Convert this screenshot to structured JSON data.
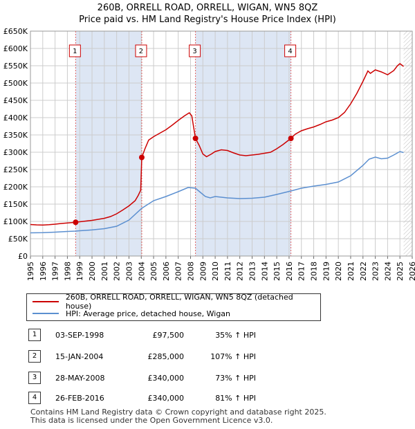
{
  "chart_data": {
    "type": "line",
    "title": "260B, ORRELL ROAD, ORRELL, WIGAN, WN5 8QZ",
    "subtitle": "Price paid vs. HM Land Registry's House Price Index (HPI)",
    "xlim": [
      1995,
      2026
    ],
    "ylim": [
      0,
      650000
    ],
    "x_ticks": [
      "1995",
      "1996",
      "1997",
      "1998",
      "1999",
      "2000",
      "2001",
      "2002",
      "2003",
      "2004",
      "2005",
      "2006",
      "2007",
      "2008",
      "2009",
      "2010",
      "2011",
      "2012",
      "2013",
      "2014",
      "2015",
      "2016",
      "2017",
      "2018",
      "2019",
      "2020",
      "2021",
      "2022",
      "2023",
      "2024",
      "2025",
      "2026"
    ],
    "y_ticks": [
      {
        "value": 0,
        "label": "£0"
      },
      {
        "value": 50000,
        "label": "£50K"
      },
      {
        "value": 100000,
        "label": "£100K"
      },
      {
        "value": 150000,
        "label": "£150K"
      },
      {
        "value": 200000,
        "label": "£200K"
      },
      {
        "value": 250000,
        "label": "£250K"
      },
      {
        "value": 300000,
        "label": "£300K"
      },
      {
        "value": 350000,
        "label": "£350K"
      },
      {
        "value": 400000,
        "label": "£400K"
      },
      {
        "value": 450000,
        "label": "£450K"
      },
      {
        "value": 500000,
        "label": "£500K"
      },
      {
        "value": 550000,
        "label": "£550K"
      },
      {
        "value": 600000,
        "label": "£600K"
      },
      {
        "value": 650000,
        "label": "£650K"
      }
    ],
    "hatch_from_year": 2025.3,
    "sale_bands": [
      [
        1998.67,
        2004.04
      ],
      [
        2008.4,
        2016.15
      ]
    ],
    "series": [
      {
        "name": "260B, ORRELL ROAD, ORRELL, WIGAN, WN5 8QZ (detached house)",
        "color": "#cc0000",
        "points": [
          [
            1995.0,
            91000
          ],
          [
            1995.5,
            90000
          ],
          [
            1996.0,
            89500
          ],
          [
            1996.5,
            90500
          ],
          [
            1997.0,
            92000
          ],
          [
            1997.5,
            94000
          ],
          [
            1998.0,
            95500
          ],
          [
            1998.5,
            97000
          ],
          [
            1998.67,
            97500
          ],
          [
            1999.0,
            99000
          ],
          [
            1999.5,
            101000
          ],
          [
            2000.0,
            103000
          ],
          [
            2000.5,
            106000
          ],
          [
            2001.0,
            109000
          ],
          [
            2001.5,
            114000
          ],
          [
            2002.0,
            122000
          ],
          [
            2002.5,
            133000
          ],
          [
            2003.0,
            145000
          ],
          [
            2003.5,
            160000
          ],
          [
            2003.75,
            175000
          ],
          [
            2003.95,
            190000
          ],
          [
            2004.04,
            285000
          ],
          [
            2004.3,
            310000
          ],
          [
            2004.6,
            335000
          ],
          [
            2005.0,
            345000
          ],
          [
            2005.5,
            355000
          ],
          [
            2006.0,
            365000
          ],
          [
            2006.5,
            378000
          ],
          [
            2007.0,
            392000
          ],
          [
            2007.5,
            405000
          ],
          [
            2007.9,
            414000
          ],
          [
            2008.1,
            405000
          ],
          [
            2008.4,
            340000
          ],
          [
            2008.7,
            320000
          ],
          [
            2009.0,
            295000
          ],
          [
            2009.3,
            287000
          ],
          [
            2009.7,
            295000
          ],
          [
            2010.0,
            302000
          ],
          [
            2010.5,
            307000
          ],
          [
            2011.0,
            305000
          ],
          [
            2011.5,
            298000
          ],
          [
            2012.0,
            292000
          ],
          [
            2012.5,
            290000
          ],
          [
            2013.0,
            292000
          ],
          [
            2013.5,
            294000
          ],
          [
            2014.0,
            297000
          ],
          [
            2014.5,
            300000
          ],
          [
            2015.0,
            310000
          ],
          [
            2015.5,
            322000
          ],
          [
            2016.15,
            340000
          ],
          [
            2016.5,
            352000
          ],
          [
            2017.0,
            362000
          ],
          [
            2017.5,
            368000
          ],
          [
            2018.0,
            373000
          ],
          [
            2018.5,
            380000
          ],
          [
            2019.0,
            388000
          ],
          [
            2019.5,
            393000
          ],
          [
            2020.0,
            400000
          ],
          [
            2020.5,
            415000
          ],
          [
            2021.0,
            440000
          ],
          [
            2021.5,
            470000
          ],
          [
            2022.0,
            505000
          ],
          [
            2022.4,
            535000
          ],
          [
            2022.6,
            528000
          ],
          [
            2023.0,
            538000
          ],
          [
            2023.5,
            532000
          ],
          [
            2024.0,
            524000
          ],
          [
            2024.5,
            536000
          ],
          [
            2024.8,
            550000
          ],
          [
            2025.0,
            556000
          ],
          [
            2025.3,
            548000
          ]
        ]
      },
      {
        "name": "HPI: Average price, detached house, Wigan",
        "color": "#5b8fd0",
        "points": [
          [
            1995.0,
            67000
          ],
          [
            1996.0,
            67500
          ],
          [
            1997.0,
            69000
          ],
          [
            1998.0,
            71000
          ],
          [
            1998.67,
            72000
          ],
          [
            1999.0,
            73000
          ],
          [
            2000.0,
            75500
          ],
          [
            2001.0,
            79000
          ],
          [
            2002.0,
            86000
          ],
          [
            2003.0,
            104000
          ],
          [
            2004.04,
            138000
          ],
          [
            2005.0,
            160000
          ],
          [
            2006.0,
            172000
          ],
          [
            2007.0,
            186000
          ],
          [
            2007.8,
            198000
          ],
          [
            2008.4,
            196000
          ],
          [
            2008.8,
            184000
          ],
          [
            2009.2,
            172000
          ],
          [
            2009.6,
            168000
          ],
          [
            2010.0,
            172000
          ],
          [
            2011.0,
            168000
          ],
          [
            2012.0,
            166000
          ],
          [
            2013.0,
            167000
          ],
          [
            2014.0,
            170000
          ],
          [
            2015.0,
            178000
          ],
          [
            2016.15,
            188000
          ],
          [
            2017.0,
            196000
          ],
          [
            2018.0,
            202000
          ],
          [
            2019.0,
            207000
          ],
          [
            2020.0,
            214000
          ],
          [
            2021.0,
            232000
          ],
          [
            2022.0,
            262000
          ],
          [
            2022.5,
            280000
          ],
          [
            2023.0,
            286000
          ],
          [
            2023.5,
            281000
          ],
          [
            2024.0,
            283000
          ],
          [
            2024.5,
            292000
          ],
          [
            2025.0,
            302000
          ],
          [
            2025.3,
            299000
          ]
        ]
      }
    ],
    "markers": [
      {
        "label": "1",
        "x": 1998.67,
        "y": 97500
      },
      {
        "label": "2",
        "x": 2004.04,
        "y": 285000
      },
      {
        "label": "3",
        "x": 2008.4,
        "y": 340000
      },
      {
        "label": "4",
        "x": 2016.15,
        "y": 340000
      }
    ]
  },
  "legend": {
    "property_label": "260B, ORRELL ROAD, ORRELL, WIGAN, WN5 8QZ (detached house)",
    "hpi_label": "HPI: Average price, detached house, Wigan",
    "property_color": "#cc0000",
    "hpi_color": "#5b8fd0"
  },
  "sales": [
    {
      "num": "1",
      "date": "03-SEP-1998",
      "price": "£97,500",
      "hpi": "35% ↑ HPI"
    },
    {
      "num": "2",
      "date": "15-JAN-2004",
      "price": "£285,000",
      "hpi": "107% ↑ HPI"
    },
    {
      "num": "3",
      "date": "28-MAY-2008",
      "price": "£340,000",
      "hpi": "73% ↑ HPI"
    },
    {
      "num": "4",
      "date": "26-FEB-2016",
      "price": "£340,000",
      "hpi": "81% ↑ HPI"
    }
  ],
  "footer": {
    "line1": "Contains HM Land Registry data © Crown copyright and database right 2025.",
    "line2": "This data is licensed under the Open Government Licence v3.0."
  }
}
